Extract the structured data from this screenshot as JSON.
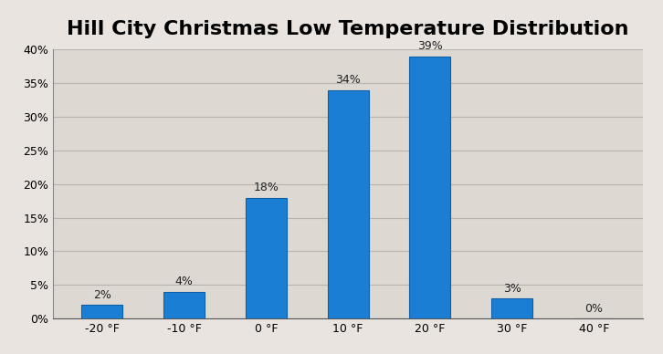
{
  "chart_data": {
    "type": "bar",
    "title": "Hill City Christmas Low Temperature Distribution",
    "categories": [
      "-20 °F",
      "-10 °F",
      "0 °F",
      "10 °F",
      "20 °F",
      "30 °F",
      "40 °F"
    ],
    "values": [
      2,
      4,
      18,
      34,
      39,
      3,
      0
    ],
    "value_labels": [
      "2%",
      "4%",
      "18%",
      "34%",
      "39%",
      "3%",
      "0%"
    ],
    "data_labels": true,
    "color": "#1a7fd4",
    "ylim": [
      0,
      40
    ],
    "yticks": [
      {
        "value": 0,
        "label": "0%"
      },
      {
        "value": 5,
        "label": "5%"
      },
      {
        "value": 10,
        "label": "10%"
      },
      {
        "value": 15,
        "label": "15%"
      },
      {
        "value": 20,
        "label": "20%"
      },
      {
        "value": 25,
        "label": "25%"
      },
      {
        "value": 30,
        "label": "30%"
      },
      {
        "value": 35,
        "label": "35%"
      },
      {
        "value": 40,
        "label": "40%"
      }
    ],
    "grid": true
  }
}
